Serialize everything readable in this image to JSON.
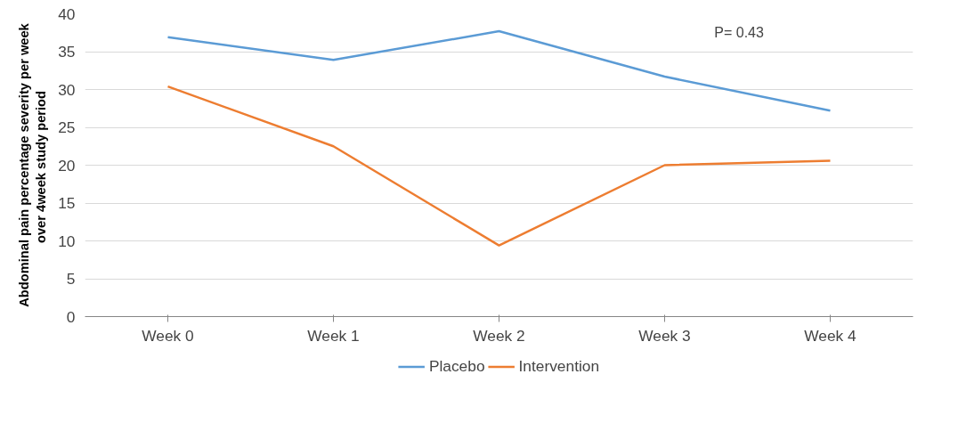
{
  "chart_data": {
    "type": "line",
    "ylabel": "Abdominal pain percentage severity per week over  4week study period",
    "categories": [
      "Week 0",
      "Week 1",
      "Week 2",
      "Week 3",
      "Week 4"
    ],
    "series": [
      {
        "name": "Placebo",
        "color": "#5b9bd5",
        "values": [
          36.9,
          33.9,
          37.7,
          31.7,
          27.2
        ]
      },
      {
        "name": "Intervention",
        "color": "#ed7d31",
        "values": [
          30.4,
          22.5,
          9.4,
          20.0,
          20.6
        ]
      }
    ],
    "ylim": [
      0,
      40
    ],
    "yticks": [
      0,
      5,
      10,
      15,
      20,
      25,
      30,
      35,
      40
    ],
    "grid": "y",
    "legend": "bottom",
    "marker": "none",
    "line_style": "solid",
    "annotations": [
      "P= 0.43"
    ]
  }
}
